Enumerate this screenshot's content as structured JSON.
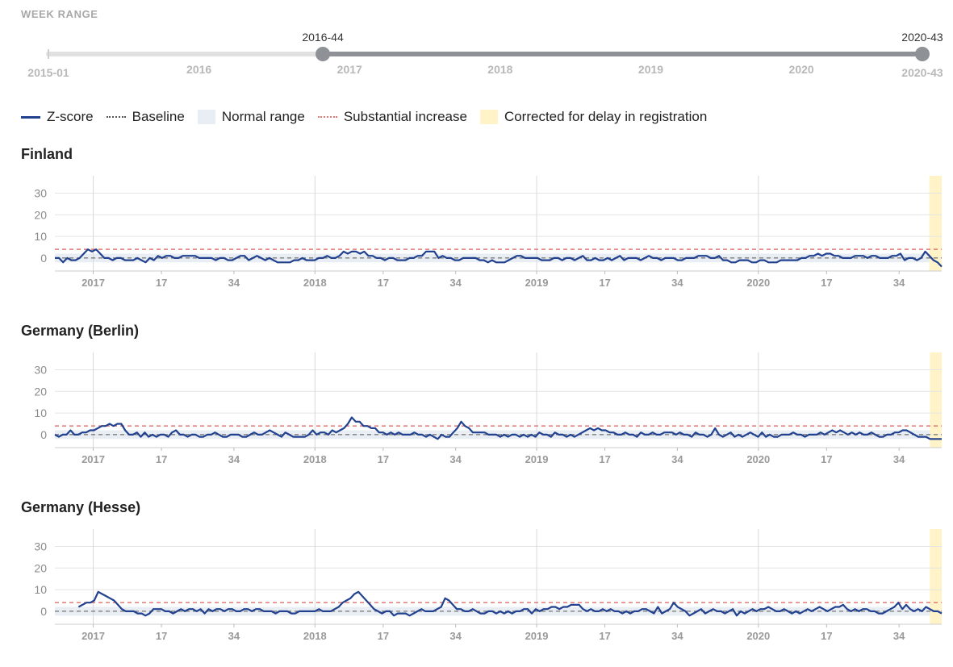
{
  "week_range": {
    "title": "WEEK RANGE",
    "start_value": "2015-01",
    "end_value": "2020-43",
    "selected_start": "2016-44",
    "selected_end": "2020-43",
    "year_labels": [
      "2016",
      "2017",
      "2018",
      "2019",
      "2020"
    ]
  },
  "legend": {
    "zscore": "Z-score",
    "baseline": "Baseline",
    "normal_range": "Normal range",
    "substantial_increase": "Substantial increase",
    "corrected": "Corrected for delay in registration"
  },
  "colors": {
    "zscore": "#22418f",
    "baseline": "#555555",
    "normal_range": "#e8eef3",
    "substantial_increase": "#e07a76",
    "corrected": "#fff3c7",
    "slider_selected": "#8e9196",
    "slider_track": "#e1e1e1"
  },
  "chart_data": [
    {
      "type": "line",
      "title": "Finland",
      "x_axis": "ISO week from 2016-44 to 2020-43",
      "x_tick_labels": [
        "2017",
        "17",
        "34",
        "2018",
        "17",
        "34",
        "2019",
        "17",
        "34",
        "2020",
        "17",
        "34"
      ],
      "y_ticks": [
        0,
        10,
        20,
        30
      ],
      "ylim": [
        -6,
        38
      ],
      "baseline": 0,
      "normal_range": [
        -2,
        2
      ],
      "substantial_increase": 4,
      "corrected_weeks_from_end": 3,
      "series": [
        {
          "values": [
            0,
            0,
            -2,
            0,
            -1,
            -1,
            0,
            2,
            4,
            3,
            4,
            2,
            0,
            0,
            -1,
            0,
            0,
            -1,
            -1,
            -1,
            0,
            -1,
            -2,
            0,
            -1,
            1,
            0,
            1,
            1,
            0,
            0,
            1,
            1,
            1,
            1,
            0,
            0,
            0,
            0,
            -1,
            0,
            0,
            -1,
            -1,
            0,
            1,
            1,
            -1,
            0,
            1,
            0,
            -1,
            0,
            -1,
            -2,
            -2,
            -2,
            -2,
            -1,
            -1,
            0,
            -1,
            -1,
            -1,
            0,
            0,
            1,
            0,
            0,
            1,
            3,
            2,
            3,
            3,
            2,
            3,
            1,
            1,
            0,
            0,
            -1,
            0,
            0,
            -1,
            -1,
            -1,
            0,
            0,
            1,
            1,
            3,
            3,
            3,
            0,
            1,
            0,
            0,
            -1,
            -1,
            0,
            0,
            0,
            0,
            -1,
            -1,
            -2,
            -1,
            -2,
            -2,
            -2,
            -1,
            0,
            1,
            1,
            0,
            0,
            0,
            0,
            -1,
            -1,
            -1,
            0,
            0,
            -1,
            0,
            0,
            -1,
            0,
            1,
            -1,
            -1,
            0,
            -1,
            -1,
            0,
            -1,
            0,
            1,
            -1,
            0,
            0,
            0,
            -1,
            0,
            1,
            0,
            0,
            -1,
            0,
            0,
            0,
            -1,
            -1,
            0,
            0,
            0,
            1,
            1,
            1,
            0,
            0,
            1,
            -1,
            -1,
            -2,
            -2,
            -1,
            -1,
            -1,
            -2,
            -2,
            -1,
            -1,
            -2,
            -2,
            -2,
            -1,
            -1,
            -1,
            -1,
            -1,
            0,
            0,
            1,
            1,
            2,
            1,
            2,
            2,
            1,
            1,
            0,
            0,
            0,
            1,
            1,
            1,
            0,
            1,
            1,
            0,
            0,
            0,
            1,
            1,
            2,
            -1,
            0,
            0,
            -1,
            0,
            3,
            1,
            -1,
            -2,
            -4
          ]
        }
      ]
    },
    {
      "type": "line",
      "title": "Germany (Berlin)",
      "x_axis": "ISO week from 2016-44 to 2020-43",
      "x_tick_labels": [
        "2017",
        "17",
        "34",
        "2018",
        "17",
        "34",
        "2019",
        "17",
        "34",
        "2020",
        "17",
        "34"
      ],
      "y_ticks": [
        0,
        10,
        20,
        30
      ],
      "ylim": [
        -6,
        38
      ],
      "baseline": 0,
      "normal_range": [
        -2,
        2
      ],
      "substantial_increase": 4,
      "corrected_weeks_from_end": 3,
      "series": [
        {
          "values": [
            0,
            -1,
            0,
            0,
            2,
            0,
            0,
            1,
            1,
            2,
            2,
            3,
            4,
            4,
            5,
            4,
            5,
            5,
            2,
            0,
            0,
            1,
            -1,
            1,
            -1,
            0,
            -1,
            0,
            0,
            -1,
            1,
            2,
            0,
            0,
            -1,
            0,
            0,
            -1,
            -1,
            0,
            0,
            1,
            0,
            -1,
            -1,
            0,
            0,
            0,
            -1,
            -1,
            0,
            1,
            0,
            0,
            1,
            2,
            1,
            0,
            -1,
            1,
            0,
            -1,
            -1,
            -1,
            -1,
            0,
            2,
            0,
            1,
            1,
            0,
            2,
            1,
            2,
            3,
            5,
            8,
            6,
            6,
            4,
            4,
            3,
            3,
            1,
            1,
            0,
            1,
            0,
            1,
            0,
            0,
            0,
            1,
            0,
            0,
            -1,
            0,
            -1,
            -2,
            0,
            -1,
            -1,
            1,
            3,
            6,
            4,
            3,
            1,
            1,
            1,
            1,
            0,
            0,
            0,
            -1,
            0,
            -1,
            0,
            0,
            -1,
            0,
            -1,
            0,
            -1,
            1,
            0,
            0,
            -1,
            1,
            0,
            0,
            -1,
            0,
            -1,
            0,
            1,
            2,
            3,
            2,
            3,
            2,
            2,
            1,
            1,
            0,
            0,
            1,
            0,
            0,
            -1,
            1,
            0,
            0,
            1,
            0,
            0,
            1,
            1,
            1,
            0,
            1,
            0,
            0,
            -1,
            1,
            0,
            0,
            -1,
            0,
            3,
            0,
            -1,
            0,
            1,
            -1,
            0,
            -1,
            0,
            1,
            0,
            -1,
            1,
            -1,
            0,
            -1,
            -1,
            0,
            0,
            0,
            1,
            0,
            0,
            -1,
            0,
            0,
            0,
            1,
            0,
            1,
            2,
            1,
            2,
            1,
            0,
            1,
            0,
            1,
            0,
            0,
            1,
            0,
            -1,
            -1,
            0,
            0,
            1,
            1,
            2,
            2,
            1,
            0,
            -1,
            -1,
            -1,
            -2,
            -2,
            -2,
            -2
          ]
        }
      ]
    },
    {
      "type": "line",
      "title": "Germany (Hesse)",
      "x_axis": "ISO week from 2016-44 to 2020-43",
      "x_tick_labels": [
        "2017",
        "17",
        "34",
        "2018",
        "17",
        "34",
        "2019",
        "17",
        "34",
        "2020",
        "17",
        "34"
      ],
      "y_ticks": [
        0,
        10,
        20,
        30
      ],
      "ylim": [
        -6,
        38
      ],
      "baseline": 0,
      "normal_range": [
        -2,
        2
      ],
      "substantial_increase": 4,
      "corrected_weeks_from_end": 3,
      "series": [
        {
          "values": [
            null,
            null,
            null,
            null,
            null,
            null,
            2,
            3,
            4,
            4,
            5,
            9,
            8,
            7,
            6,
            5,
            3,
            1,
            0,
            0,
            0,
            -1,
            -1,
            -2,
            -1,
            1,
            1,
            1,
            0,
            0,
            -1,
            0,
            1,
            0,
            1,
            1,
            0,
            1,
            -1,
            1,
            0,
            1,
            1,
            0,
            1,
            1,
            0,
            0,
            1,
            1,
            0,
            1,
            1,
            0,
            0,
            0,
            -1,
            0,
            0,
            0,
            -1,
            -1,
            0,
            0,
            0,
            0,
            0,
            1,
            0,
            0,
            0,
            1,
            2,
            4,
            5,
            6,
            8,
            9,
            7,
            5,
            3,
            1,
            0,
            -1,
            0,
            0,
            -2,
            -1,
            -1,
            -1,
            -2,
            -1,
            0,
            1,
            0,
            0,
            0,
            1,
            2,
            6,
            5,
            3,
            1,
            1,
            0,
            0,
            1,
            0,
            -1,
            -1,
            0,
            0,
            -1,
            0,
            -1,
            0,
            -1,
            0,
            0,
            1,
            1,
            -1,
            1,
            0,
            1,
            1,
            2,
            2,
            1,
            2,
            2,
            3,
            3,
            3,
            1,
            0,
            1,
            0,
            0,
            1,
            0,
            1,
            0,
            0,
            -1,
            0,
            -1,
            0,
            0,
            1,
            1,
            0,
            -1,
            2,
            -1,
            0,
            1,
            4,
            2,
            1,
            0,
            -2,
            -1,
            0,
            1,
            -1,
            0,
            1,
            0,
            0,
            -1,
            0,
            1,
            -2,
            0,
            -1,
            0,
            1,
            0,
            1,
            1,
            2,
            1,
            0,
            0,
            1,
            0,
            -1,
            0,
            -1,
            0,
            1,
            0,
            1,
            2,
            1,
            0,
            1,
            2,
            2,
            3,
            1,
            0,
            1,
            0,
            1,
            1,
            0,
            0,
            -1,
            -1,
            0,
            1,
            2,
            4,
            1,
            3,
            1,
            0,
            1,
            0,
            2,
            1,
            0,
            0,
            -1
          ]
        }
      ]
    }
  ]
}
